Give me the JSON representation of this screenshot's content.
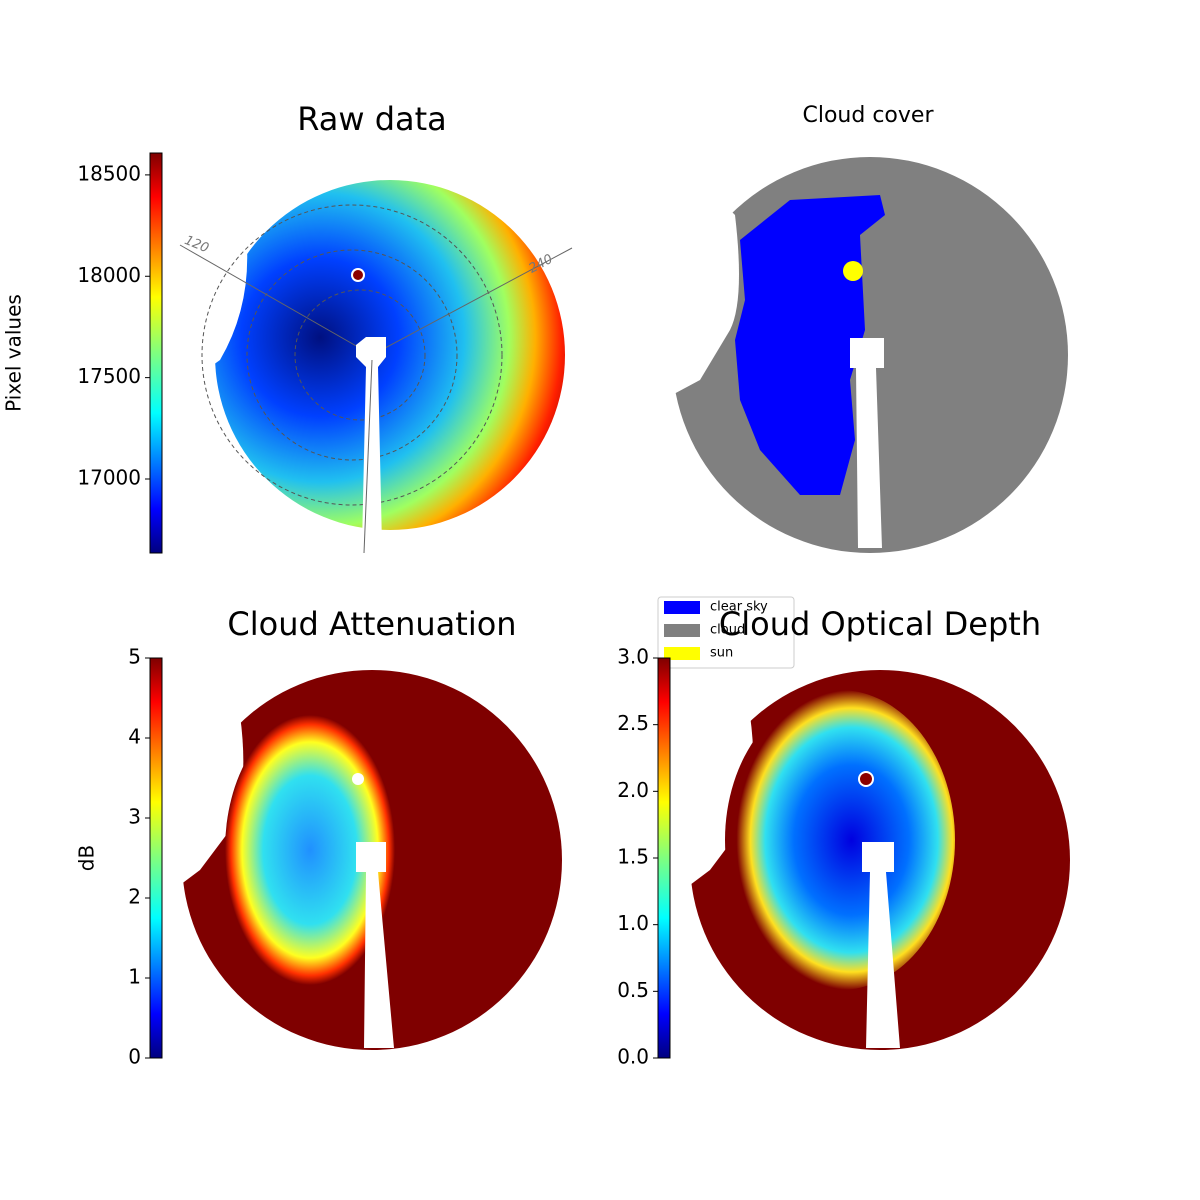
{
  "chart_data": [
    {
      "type": "image",
      "title": "Raw data",
      "colorbar_label": "Pixel values",
      "ylim": [
        16635,
        18608
      ],
      "yticks": [
        17000,
        17500,
        18000,
        18500
      ],
      "colormap": "jet",
      "annotations": [
        "120",
        "240"
      ]
    },
    {
      "type": "mask",
      "title": "Cloud cover",
      "series": [
        {
          "name": "clear sky",
          "color": "#0000ff"
        },
        {
          "name": "cloud",
          "color": "#808080"
        },
        {
          "name": "sun",
          "color": "#ffff00"
        }
      ]
    },
    {
      "type": "image",
      "title": "Cloud Attenuation",
      "colorbar_label": "dB",
      "ylim": [
        0,
        5
      ],
      "yticks": [
        0,
        1,
        2,
        3,
        4,
        5
      ],
      "colormap": "jet"
    },
    {
      "type": "image",
      "title": "Cloud Optical Depth",
      "ylim": [
        0,
        3
      ],
      "yticks": [
        {
          "value": 0,
          "label": "0.0"
        },
        {
          "value": 0.5,
          "label": "0.5"
        },
        {
          "value": 1,
          "label": "1.0"
        },
        {
          "value": 1.5,
          "label": "1.5"
        },
        {
          "value": 2,
          "label": "2.0"
        },
        {
          "value": 2.5,
          "label": "2.5"
        },
        {
          "value": 3,
          "label": "3.0"
        }
      ],
      "colormap": "jet"
    }
  ]
}
